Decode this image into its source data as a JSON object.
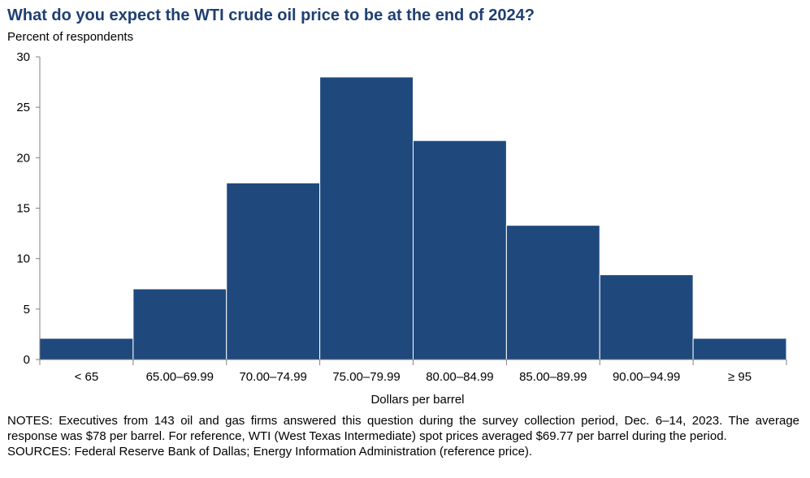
{
  "chart_data": {
    "type": "bar",
    "title": "What do you expect the WTI crude oil price to be at the end of 2024?",
    "ylabel": "Percent of respondents",
    "xlabel": "Dollars per barrel",
    "categories": [
      "< 65",
      "65.00–69.99",
      "70.00–74.99",
      "75.00–79.99",
      "80.00–84.99",
      "85.00–89.99",
      "90.00–94.99",
      "≥ 95"
    ],
    "values": [
      2.1,
      7.0,
      17.5,
      28.0,
      21.7,
      13.3,
      8.4,
      2.1
    ],
    "ylim": [
      0,
      30
    ],
    "yticks": [
      "0",
      "5",
      "10",
      "15",
      "20",
      "25",
      "30"
    ],
    "grid": false,
    "bar_color": "#1f497d"
  },
  "notes": {
    "note": "NOTES: Executives from 143 oil and gas firms answered this question during the survey collection period, Dec. 6–14, 2023. The average response was $78 per barrel. For reference, WTI (West Texas Intermediate) spot prices averaged $69.77 per barrel during the period.",
    "sources": "SOURCES: Federal Reserve Bank of Dallas; Energy Information Administration (reference price)."
  }
}
